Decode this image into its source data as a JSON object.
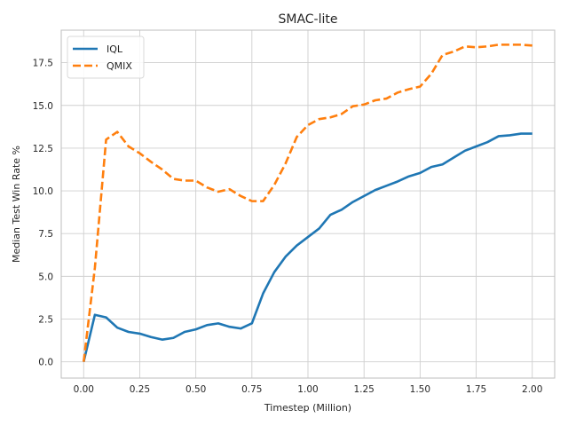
{
  "chart_data": {
    "type": "line",
    "title": "SMAC-lite",
    "xlabel": "Timestep (Million)",
    "ylabel": "Median Test Win Rate %",
    "xlim": [
      -0.1,
      2.1
    ],
    "ylim": [
      -0.95,
      19.4
    ],
    "xticks": [
      0.0,
      0.25,
      0.5,
      0.75,
      1.0,
      1.25,
      1.5,
      1.75,
      2.0
    ],
    "xtick_labels": [
      "0.00",
      "0.25",
      "0.50",
      "0.75",
      "1.00",
      "1.25",
      "1.50",
      "1.75",
      "2.00"
    ],
    "yticks": [
      0.0,
      2.5,
      5.0,
      7.5,
      10.0,
      12.5,
      15.0,
      17.5
    ],
    "ytick_labels": [
      "0.0",
      "2.5",
      "5.0",
      "7.5",
      "10.0",
      "12.5",
      "15.0",
      "17.5"
    ],
    "grid": true,
    "legend": "top-left",
    "x": [
      0.0,
      0.05,
      0.1,
      0.15,
      0.2,
      0.25,
      0.3,
      0.35,
      0.4,
      0.45,
      0.5,
      0.55,
      0.6,
      0.65,
      0.7,
      0.75,
      0.8,
      0.85,
      0.9,
      0.95,
      1.0,
      1.05,
      1.1,
      1.15,
      1.2,
      1.25,
      1.3,
      1.35,
      1.4,
      1.45,
      1.5,
      1.55,
      1.6,
      1.65,
      1.7,
      1.75,
      1.8,
      1.85,
      1.9,
      1.95,
      2.0
    ],
    "series": [
      {
        "name": "IQL",
        "color": "#1f77b4",
        "style": "solid",
        "values": [
          0.0,
          2.75,
          2.6,
          2.0,
          1.75,
          1.65,
          1.45,
          1.3,
          1.4,
          1.75,
          1.9,
          2.15,
          2.25,
          2.05,
          1.95,
          2.25,
          4.0,
          5.25,
          6.15,
          6.8,
          7.3,
          7.8,
          8.6,
          8.9,
          9.35,
          9.7,
          10.05,
          10.3,
          10.55,
          10.85,
          11.05,
          11.4,
          11.55,
          11.95,
          12.35,
          12.6,
          12.85,
          13.2,
          13.25,
          13.35,
          13.35
        ]
      },
      {
        "name": "QMIX",
        "color": "#ff7f0e",
        "style": "dashed",
        "values": [
          0.0,
          5.5,
          13.0,
          13.45,
          12.6,
          12.2,
          11.7,
          11.25,
          10.7,
          10.6,
          10.6,
          10.2,
          9.95,
          10.1,
          9.7,
          9.4,
          9.4,
          10.35,
          11.6,
          13.15,
          13.85,
          14.2,
          14.3,
          14.5,
          14.95,
          15.05,
          15.3,
          15.4,
          15.75,
          15.95,
          16.1,
          16.85,
          17.95,
          18.15,
          18.45,
          18.4,
          18.45,
          18.55,
          18.55,
          18.55,
          18.5
        ]
      }
    ]
  }
}
